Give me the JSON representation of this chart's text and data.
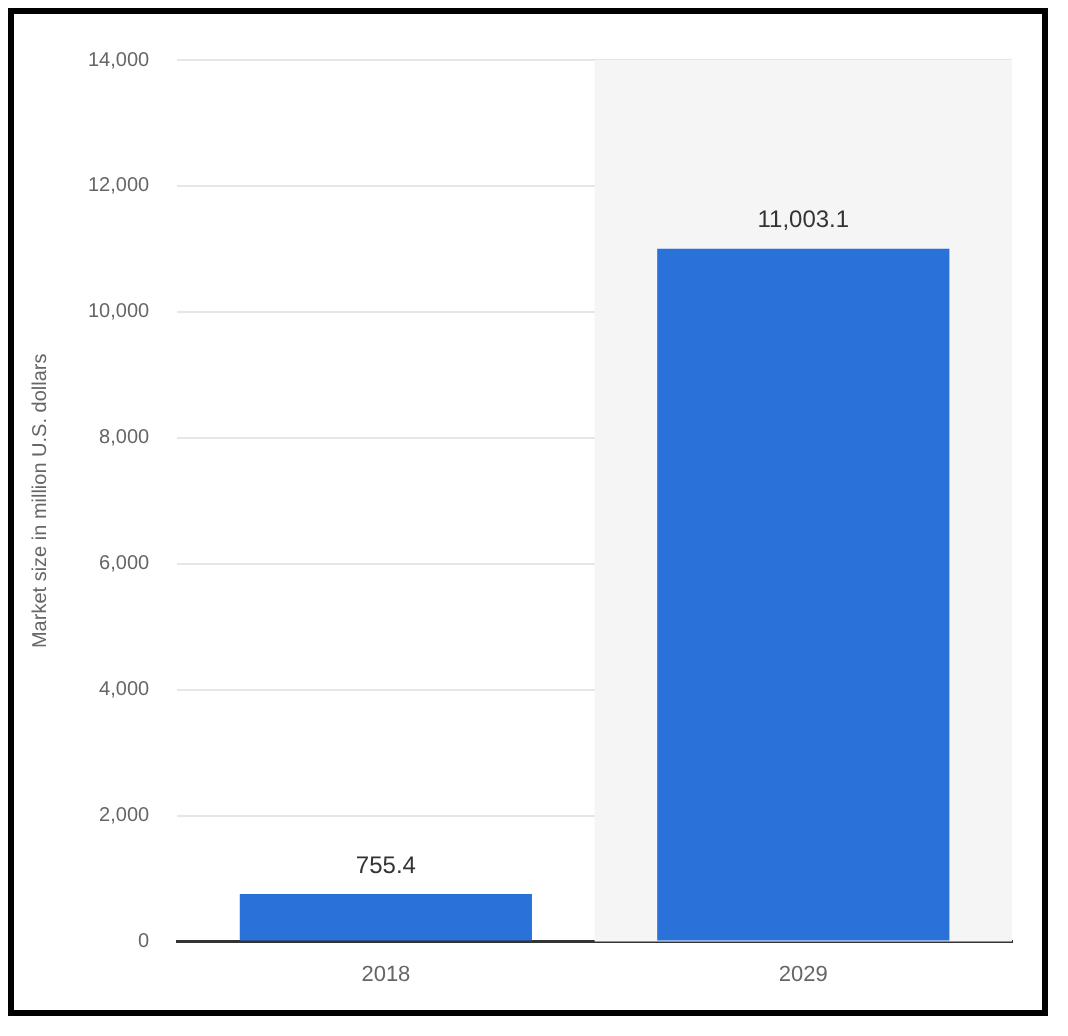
{
  "chart_data": {
    "type": "bar",
    "ylabel": "Market size in million U.S. dollars",
    "categories": [
      "2018",
      "2029"
    ],
    "values": [
      755.4,
      11003.1
    ],
    "value_labels": [
      "755.4",
      "11,003.1"
    ],
    "color": "#2a72d9",
    "ylim": [
      0,
      14000
    ],
    "yticks": [
      0,
      {
        "value": 2000,
        "label": "2,000"
      },
      {
        "value": 4000,
        "label": "4,000"
      },
      {
        "value": 6000,
        "label": "6,000"
      },
      {
        "value": 8000,
        "label": "8,000"
      },
      {
        "value": 10000,
        "label": "10,000"
      },
      {
        "value": 12000,
        "label": "12,000"
      },
      {
        "value": 14000,
        "label": "14,000"
      }
    ],
    "grid": "y",
    "legend": false,
    "bands": [
      {
        "axis": "x",
        "from": "2029",
        "to": "2029",
        "color": "#f5f5f5"
      }
    ]
  }
}
